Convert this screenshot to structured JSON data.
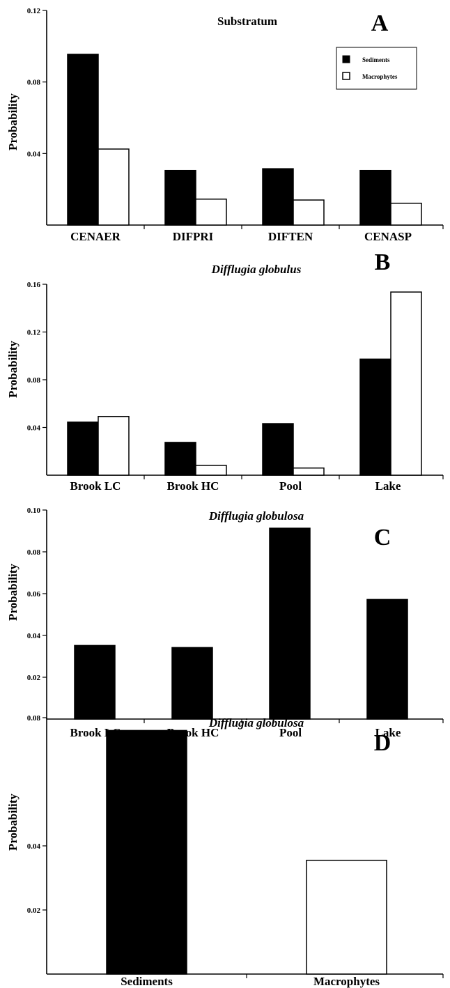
{
  "colors": {
    "sediments": "#000000",
    "macrophytes": "#ffffff",
    "axis": "#000000"
  },
  "chart_data": [
    {
      "type": "bar",
      "panel": "A",
      "title": "Substratum",
      "title_italic": false,
      "xlabel": "",
      "ylabel": "Probability",
      "ylim": [
        0,
        0.12
      ],
      "yticks": [
        {
          "value": 0.04,
          "label": "0.04"
        },
        {
          "value": 0.08,
          "label": "0.08"
        },
        {
          "value": 0.12,
          "label": "0.12"
        }
      ],
      "categories": [
        "CENAER",
        "DIFPRI",
        "DIFTEN",
        "CENASP"
      ],
      "series": [
        {
          "name": "Sediments",
          "values": [
            0.0955,
            0.0305,
            0.0315,
            0.0305
          ]
        },
        {
          "name": "Macrophytes",
          "values": [
            0.0425,
            0.0145,
            0.014,
            0.0122
          ]
        }
      ],
      "legend": {
        "position": "top-right",
        "show": true
      },
      "grid": false
    },
    {
      "type": "bar",
      "panel": "B",
      "title": "Difflugia globulus",
      "title_italic": true,
      "xlabel": "",
      "ylabel": "Probability",
      "ylim": [
        0,
        0.16
      ],
      "yticks": [
        {
          "value": 0.04,
          "label": "0.04"
        },
        {
          "value": 0.08,
          "label": "0.08"
        },
        {
          "value": 0.12,
          "label": "0.12"
        },
        {
          "value": 0.16,
          "label": "0.16"
        }
      ],
      "categories": [
        "Brook LC",
        "Brook HC",
        "Pool",
        "Lake"
      ],
      "series": [
        {
          "values": [
            0.0445,
            0.0275,
            0.0432,
            0.0973
          ]
        },
        {
          "values": [
            0.0492,
            0.0082,
            0.006,
            0.1535
          ]
        }
      ],
      "legend": {
        "show": false
      },
      "grid": false
    },
    {
      "type": "bar",
      "panel": "C",
      "title": "Difflugia globulosa",
      "title_italic": true,
      "xlabel": "",
      "ylabel": "Probability",
      "ylim": [
        0,
        0.1
      ],
      "yticks": [
        {
          "value": 0.02,
          "label": "0.02"
        },
        {
          "value": 0.04,
          "label": "0.04"
        },
        {
          "value": 0.06,
          "label": "0.06"
        },
        {
          "value": 0.08,
          "label": "0.08"
        },
        {
          "value": 0.1,
          "label": "0.10"
        }
      ],
      "categories": [
        "Brook LC",
        "Brook HC",
        "Pool",
        "Lake"
      ],
      "series": [
        {
          "values": [
            0.0352,
            0.0342,
            0.0913,
            0.0572
          ]
        }
      ],
      "legend": {
        "show": false
      },
      "grid": false
    },
    {
      "type": "bar",
      "panel": "D",
      "title": "Difflugia globulosa",
      "title_italic": true,
      "xlabel": "",
      "ylabel": "Probability",
      "ylim": [
        0,
        0.08
      ],
      "yticks": [
        {
          "value": 0.02,
          "label": "0.02"
        },
        {
          "value": 0.04,
          "label": "0.04"
        },
        {
          "value": 0.08,
          "label": "0.08"
        }
      ],
      "categories": [
        "Sediments",
        "Macrophytes"
      ],
      "series": [
        {
          "values": [
            0.076,
            0.0355
          ],
          "colors": [
            "#000000",
            "#ffffff"
          ]
        }
      ],
      "legend": {
        "show": false
      },
      "grid": false
    }
  ]
}
